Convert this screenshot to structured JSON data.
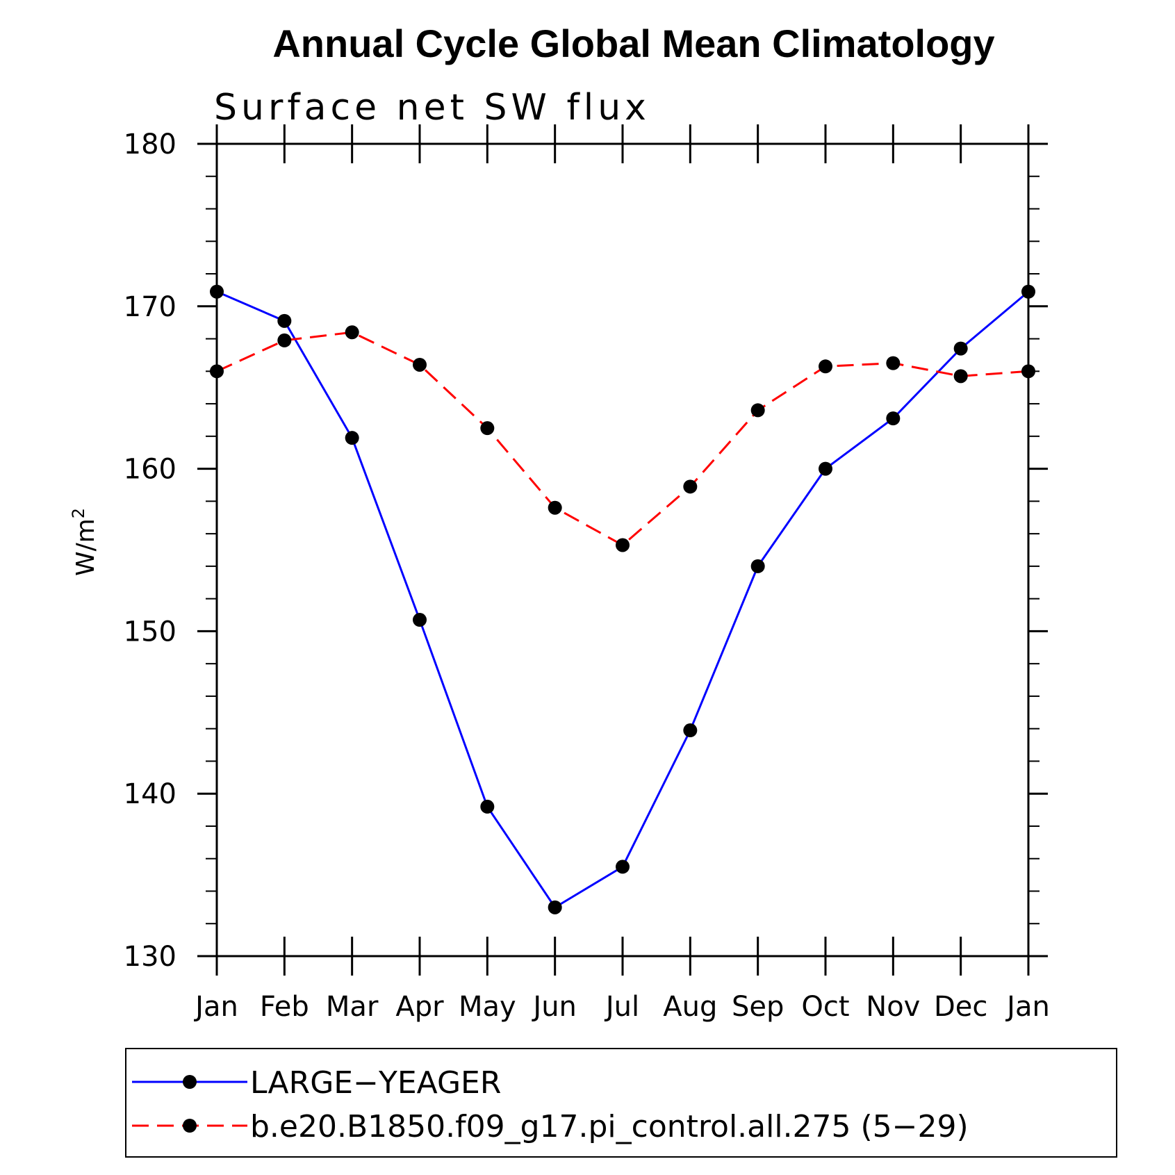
{
  "chart_data": {
    "type": "line",
    "title": "Annual Cycle Global Mean Climatology",
    "subtitle": "Surface net SW flux",
    "ylabel_base": "W/m",
    "ylabel_sup": "2",
    "xlabel": "",
    "categories": [
      "Jan",
      "Feb",
      "Mar",
      "Apr",
      "May",
      "Jun",
      "Jul",
      "Aug",
      "Sep",
      "Oct",
      "Nov",
      "Dec",
      "Jan"
    ],
    "ylim": [
      130,
      180
    ],
    "yticks": [
      130,
      140,
      150,
      160,
      170,
      180
    ],
    "yminor_step": 2,
    "grid": false,
    "legend_position": "bottom",
    "series": [
      {
        "name": "LARGE−YEAGER",
        "color": "#0000ff",
        "line_style": "solid",
        "marker": "filled-circle",
        "values": [
          170.9,
          169.1,
          161.9,
          150.7,
          139.2,
          133.0,
          135.5,
          143.9,
          154.0,
          160.0,
          163.1,
          167.4,
          170.9
        ]
      },
      {
        "name": "b.e20.B1850.f09_g17.pi_control.all.275 (5−29)",
        "color": "#ff0000",
        "line_style": "dashed",
        "marker": "filled-circle",
        "values": [
          166.0,
          167.9,
          168.4,
          166.4,
          162.5,
          157.6,
          155.3,
          158.9,
          163.6,
          166.3,
          166.5,
          165.7,
          166.0
        ]
      }
    ]
  }
}
